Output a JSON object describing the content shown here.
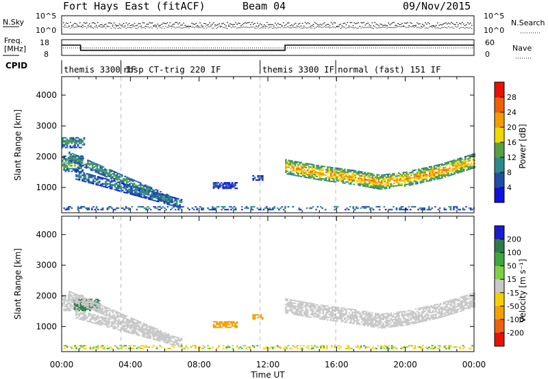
{
  "header": {
    "station": "Fort Hays East (fitACF)",
    "beam": "Beam 04",
    "date": "09/Nov/2015"
  },
  "status_panels": {
    "nsky_label": "N.Sky",
    "nsky_ticks": [
      "10^5",
      "10^0"
    ],
    "nsearch_label": "N.Search",
    "nsearch_ticks": [
      "10^5",
      "10^0"
    ],
    "freq_label_line1": "Freq.",
    "freq_label_line2": "[MHz]",
    "freq_ticks": [
      "18",
      "8"
    ],
    "freq_segments": [
      {
        "from_hour": 0.0,
        "to_hour": 1.1,
        "mhz": 14.5
      },
      {
        "from_hour": 1.1,
        "to_hour": 13.0,
        "mhz": 11.2
      },
      {
        "from_hour": 13.0,
        "to_hour": 24.0,
        "mhz": 14.5
      }
    ],
    "nave_label": "Nave",
    "nave_ticks": [
      "60",
      "0"
    ],
    "cpid_label": "CPID",
    "cpid_segments": [
      {
        "label": "themis 3300 IF",
        "start_hour": 0.0
      },
      {
        "label": "rbsp CT-trig 220 IF",
        "start_hour": 3.45
      },
      {
        "label": "themis 3300 IF",
        "start_hour": 11.55
      },
      {
        "label": "normal (fast) 151 IF",
        "start_hour": 15.95
      }
    ]
  },
  "axes": {
    "y_label": "Slant Range [km]",
    "x_label": "Time UT",
    "y_ticks": [
      "1000",
      "2000",
      "3000",
      "4000"
    ],
    "x_ticks": [
      "00:00",
      "04:00",
      "08:00",
      "12:00",
      "16:00",
      "20:00",
      "00:00"
    ]
  },
  "colorbars": {
    "power": {
      "label": "Power [dB]",
      "ticks": [
        "4",
        "8",
        "12",
        "16",
        "20",
        "24",
        "28"
      ],
      "colors": [
        "#1010e0",
        "#1f4ea8",
        "#2e8a8a",
        "#56a040",
        "#f0d800",
        "#f59a00",
        "#f06000",
        "#e81000"
      ]
    },
    "velocity": {
      "label": "Velocity [m s⁻¹]",
      "ticks": [
        "200",
        "100",
        "50",
        "15",
        "-15",
        "-50",
        "-100",
        "-200"
      ],
      "colors": [
        "#1a1acc",
        "#2e7a4a",
        "#3aa83a",
        "#80d040",
        "#c8c8c8",
        "#f5d000",
        "#f5a000",
        "#f06010",
        "#e81000"
      ]
    }
  },
  "chart_data": [
    {
      "type": "heatmap",
      "title": "Power [dB]",
      "xlabel": "Time UT",
      "ylabel": "Slant Range [km]",
      "xlim": [
        0,
        24
      ],
      "ylim": [
        180,
        4600
      ],
      "value_range": [
        0,
        30
      ],
      "x_ticks": [
        "00:00",
        "04:00",
        "08:00",
        "12:00",
        "16:00",
        "20:00",
        "00:00"
      ],
      "y_ticks": [
        1000,
        2000,
        3000,
        4000
      ],
      "regions": [
        {
          "name": "morning-band",
          "t_start": 0.0,
          "t_end": 1.2,
          "range_center": 1750,
          "range_width": 500,
          "value": 11
        },
        {
          "name": "morning-high",
          "t_start": 0.0,
          "t_end": 1.3,
          "range_center": 2450,
          "range_width": 350,
          "value": 9
        },
        {
          "name": "descending-arc-upper",
          "t_start": 0.4,
          "t_end": 6.2,
          "range_start": 2000,
          "range_end": 600,
          "value": 10
        },
        {
          "name": "descending-arc-lower",
          "t_start": 0.8,
          "t_end": 7.0,
          "range_start": 1400,
          "range_end": 450,
          "value": 8
        },
        {
          "name": "midday-patch",
          "t_start": 8.8,
          "t_end": 10.2,
          "range_center": 1050,
          "range_width": 200,
          "value": 5
        },
        {
          "name": "small-patch",
          "t_start": 11.1,
          "t_end": 11.7,
          "range_center": 1300,
          "range_width": 160,
          "value": 6
        },
        {
          "name": "evening-band",
          "t_start": 13.0,
          "t_end": 24.0,
          "range_center_profile": [
            [
              13,
              1650
            ],
            [
              15,
              1450
            ],
            [
              17,
              1300
            ],
            [
              18.5,
              1150
            ],
            [
              20,
              1250
            ],
            [
              22,
              1500
            ],
            [
              24,
              1850
            ]
          ],
          "range_width": 450,
          "value": 18
        },
        {
          "name": "near-range-clutter",
          "t_start": 0.0,
          "t_end": 24.0,
          "range_center": 320,
          "range_width": 120,
          "value": 8
        }
      ]
    },
    {
      "type": "heatmap",
      "title": "Velocity [m s⁻¹]",
      "xlabel": "Time UT",
      "ylabel": "Slant Range [km]",
      "xlim": [
        0,
        24
      ],
      "ylim": [
        180,
        4600
      ],
      "value_range": [
        -200,
        200
      ],
      "x_ticks": [
        "00:00",
        "04:00",
        "08:00",
        "12:00",
        "16:00",
        "20:00",
        "00:00"
      ],
      "y_ticks": [
        1000,
        2000,
        3000,
        4000
      ],
      "regions": [
        {
          "name": "morning-band",
          "t_start": 0.0,
          "t_end": 1.2,
          "range_center": 1750,
          "range_width": 500,
          "value": 0
        },
        {
          "name": "morning-jet",
          "t_start": 0.7,
          "t_end": 2.2,
          "range_center": 1700,
          "range_width": 400,
          "value": 180
        },
        {
          "name": "descending-arc-upper",
          "t_start": 0.4,
          "t_end": 6.2,
          "range_start": 2000,
          "range_end": 600,
          "value": 0
        },
        {
          "name": "descending-arc-lower",
          "t_start": 0.8,
          "t_end": 7.0,
          "range_start": 1400,
          "range_end": 450,
          "value": 0
        },
        {
          "name": "midday-patch",
          "t_start": 8.8,
          "t_end": 10.2,
          "range_center": 1050,
          "range_width": 200,
          "value": -60
        },
        {
          "name": "small-patch",
          "t_start": 11.1,
          "t_end": 11.7,
          "range_center": 1300,
          "range_width": 160,
          "value": -80
        },
        {
          "name": "evening-band",
          "t_start": 13.0,
          "t_end": 24.0,
          "range_center_profile": [
            [
              13,
              1650
            ],
            [
              15,
              1450
            ],
            [
              17,
              1300
            ],
            [
              18.5,
              1150
            ],
            [
              20,
              1250
            ],
            [
              22,
              1500
            ],
            [
              24,
              1850
            ]
          ],
          "range_width": 450,
          "value": 0
        },
        {
          "name": "near-range-clutter",
          "t_start": 0.0,
          "t_end": 24.0,
          "range_center": 320,
          "range_width": 120,
          "value": -40
        }
      ]
    }
  ]
}
